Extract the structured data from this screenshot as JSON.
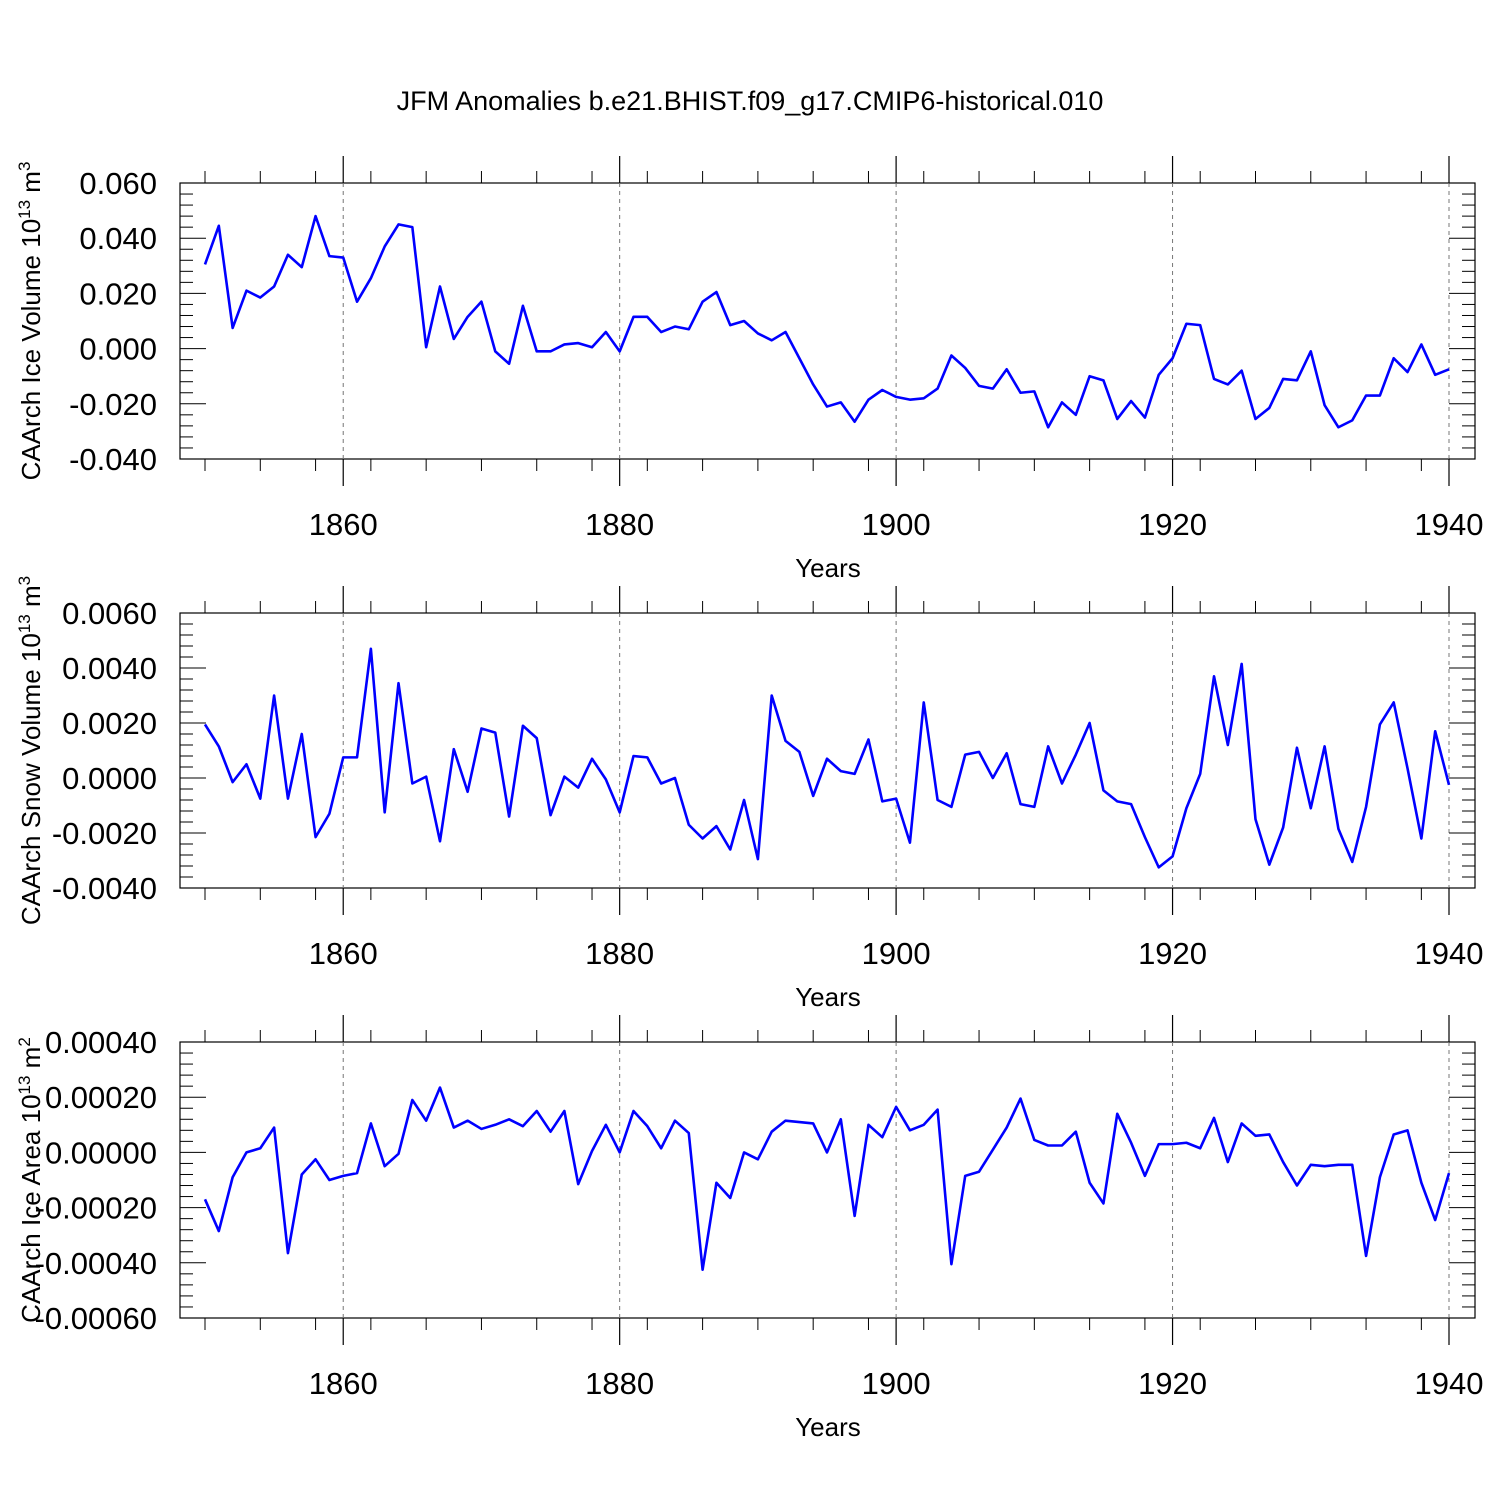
{
  "title": "JFM Anomalies b.e21.BHIST.f09_g17.CMIP6-historical.010",
  "line_color": "#0000ff",
  "chart_data": [
    {
      "type": "line",
      "ylabel": "CAArch Ice Volume 10",
      "ylabel_sup": "13",
      "ylabel_unit": "m",
      "ylabel_unit_sup": "3",
      "xlabel": "Years",
      "xlim": [
        1850,
        1940
      ],
      "ylim": [
        -0.04,
        0.06
      ],
      "yticks": [
        -0.04,
        -0.02,
        0.0,
        0.02,
        0.04,
        0.06
      ],
      "ytick_labels": [
        "-0.040",
        "-0.020",
        "0.000",
        "0.020",
        "0.040",
        "0.060"
      ],
      "xticks": [
        1860,
        1880,
        1900,
        1920,
        1940
      ],
      "xtick_labels": [
        "1860",
        "1880",
        "1900",
        "1920",
        "1940"
      ],
      "grid": "vertical dashed at major x ticks",
      "series": [
        {
          "x_start": 1850,
          "values": [
            0.0305,
            0.0445,
            0.0075,
            0.021,
            0.0185,
            0.0225,
            0.034,
            0.0295,
            0.048,
            0.0335,
            0.033,
            0.017,
            0.0255,
            0.037,
            0.045,
            0.044,
            0.0005,
            0.0225,
            0.0035,
            0.0115,
            0.017,
            -0.001,
            -0.0055,
            0.0155,
            -0.001,
            -0.001,
            0.0015,
            0.002,
            0.0005,
            0.006,
            -0.001,
            0.0115,
            0.0115,
            0.006,
            0.008,
            0.007,
            0.017,
            0.0205,
            0.0085,
            0.01,
            0.0055,
            0.003,
            0.006,
            -0.0035,
            -0.013,
            -0.021,
            -0.0195,
            -0.0265,
            -0.0185,
            -0.015,
            -0.0175,
            -0.0185,
            -0.018,
            -0.0145,
            -0.0025,
            -0.007,
            -0.0135,
            -0.0145,
            -0.0075,
            -0.016,
            -0.0155,
            -0.0285,
            -0.0195,
            -0.024,
            -0.01,
            -0.0115,
            -0.0255,
            -0.019,
            -0.025,
            -0.0095,
            -0.0035,
            0.009,
            0.0085,
            -0.011,
            -0.013,
            -0.008,
            -0.0255,
            -0.0215,
            -0.011,
            -0.0115,
            -0.001,
            -0.0205,
            -0.0285,
            -0.026,
            -0.017,
            -0.017,
            -0.0035,
            -0.0085,
            0.0015,
            -0.0095,
            -0.0075
          ]
        }
      ]
    },
    {
      "type": "line",
      "ylabel": "CAArch Snow Volume 10",
      "ylabel_sup": "13",
      "ylabel_unit": "m",
      "ylabel_unit_sup": "3",
      "xlabel": "Years",
      "xlim": [
        1850,
        1940
      ],
      "ylim": [
        -0.004,
        0.006
      ],
      "yticks": [
        -0.004,
        -0.002,
        0.0,
        0.002,
        0.004,
        0.006
      ],
      "ytick_labels": [
        "-0.0040",
        "-0.0020",
        "0.0000",
        "0.0020",
        "0.0040",
        "0.0060"
      ],
      "xticks": [
        1860,
        1880,
        1900,
        1920,
        1940
      ],
      "xtick_labels": [
        "1860",
        "1880",
        "1900",
        "1920",
        "1940"
      ],
      "grid": "vertical dashed at major x ticks",
      "series": [
        {
          "x_start": 1850,
          "values": [
            0.00195,
            0.00115,
            -0.00015,
            0.0005,
            -0.00075,
            0.003,
            -0.00075,
            0.0016,
            -0.00215,
            -0.0013,
            0.00075,
            0.00075,
            0.0047,
            -0.00125,
            0.00345,
            -0.0002,
            5e-05,
            -0.0023,
            0.00105,
            -0.0005,
            0.0018,
            0.00165,
            -0.0014,
            0.0019,
            0.00145,
            -0.00135,
            5e-05,
            -0.00035,
            0.0007,
            -5e-05,
            -0.00125,
            0.0008,
            0.00075,
            -0.0002,
            0.0,
            -0.0017,
            -0.0022,
            -0.00175,
            -0.0026,
            -0.0008,
            -0.00295,
            0.003,
            0.00135,
            0.00095,
            -0.00065,
            0.0007,
            0.00025,
            0.00015,
            0.0014,
            -0.00085,
            -0.00075,
            -0.00235,
            0.00275,
            -0.0008,
            -0.00105,
            0.00085,
            0.00095,
            0.0,
            0.0009,
            -0.00095,
            -0.00105,
            0.00115,
            -0.0002,
            0.00085,
            0.002,
            -0.00045,
            -0.00085,
            -0.00095,
            -0.00215,
            -0.00325,
            -0.00285,
            -0.0011,
            0.00015,
            0.0037,
            0.0012,
            0.00415,
            -0.0015,
            -0.00315,
            -0.0018,
            0.0011,
            -0.0011,
            0.00115,
            -0.00185,
            -0.00305,
            -0.00105,
            0.00195,
            0.00275,
            0.00035,
            -0.0022,
            0.0017,
            -0.00025
          ]
        }
      ]
    },
    {
      "type": "line",
      "ylabel": "CAArch Ice Area 10",
      "ylabel_sup": "13",
      "ylabel_unit": "m",
      "ylabel_unit_sup": "2",
      "xlabel": "Years",
      "xlim": [
        1850,
        1940
      ],
      "ylim": [
        -0.0006,
        0.0004
      ],
      "yticks": [
        -0.0006,
        -0.0004,
        -0.0002,
        0.0,
        0.0002,
        0.0004
      ],
      "ytick_labels": [
        "-0.00060",
        "-0.00040",
        "-0.00020",
        "0.00000",
        "0.00020",
        "0.00040"
      ],
      "xticks": [
        1860,
        1880,
        1900,
        1920,
        1940
      ],
      "xtick_labels": [
        "1860",
        "1880",
        "1900",
        "1920",
        "1940"
      ],
      "grid": "vertical dashed at major x ticks",
      "series": [
        {
          "x_start": 1850,
          "values": [
            -0.00017,
            -0.000285,
            -9e-05,
            0.0,
            1.5e-05,
            9e-05,
            -0.000365,
            -8e-05,
            -2.5e-05,
            -0.0001,
            -8.5e-05,
            -7.5e-05,
            0.000105,
            -5e-05,
            -5e-06,
            0.00019,
            0.000115,
            0.000235,
            9e-05,
            0.000115,
            8.5e-05,
            0.0001,
            0.00012,
            9.5e-05,
            0.00015,
            7.5e-05,
            0.00015,
            -0.000115,
            5e-06,
            0.0001,
            0.0,
            0.00015,
            9.5e-05,
            1.5e-05,
            0.000115,
            7e-05,
            -0.000425,
            -0.00011,
            -0.000165,
            0.0,
            -2.5e-05,
            7.5e-05,
            0.000115,
            0.00011,
            0.000105,
            0.0,
            0.00012,
            -0.00023,
            0.0001,
            5.5e-05,
            0.000165,
            8e-05,
            0.0001,
            0.000155,
            -0.000405,
            -8.5e-05,
            -7e-05,
            1e-05,
            9e-05,
            0.000195,
            4.5e-05,
            2.5e-05,
            2.5e-05,
            7.5e-05,
            -0.00011,
            -0.000185,
            0.00014,
            3.5e-05,
            -8.5e-05,
            3e-05,
            3e-05,
            3.5e-05,
            1.5e-05,
            0.000125,
            -3.5e-05,
            0.000105,
            6e-05,
            6.5e-05,
            -3.5e-05,
            -0.00012,
            -4.5e-05,
            -5e-05,
            -4.5e-05,
            -4.5e-05,
            -0.000375,
            -9e-05,
            6.5e-05,
            8e-05,
            -0.00011,
            -0.000245,
            -7.5e-05
          ]
        }
      ]
    }
  ]
}
